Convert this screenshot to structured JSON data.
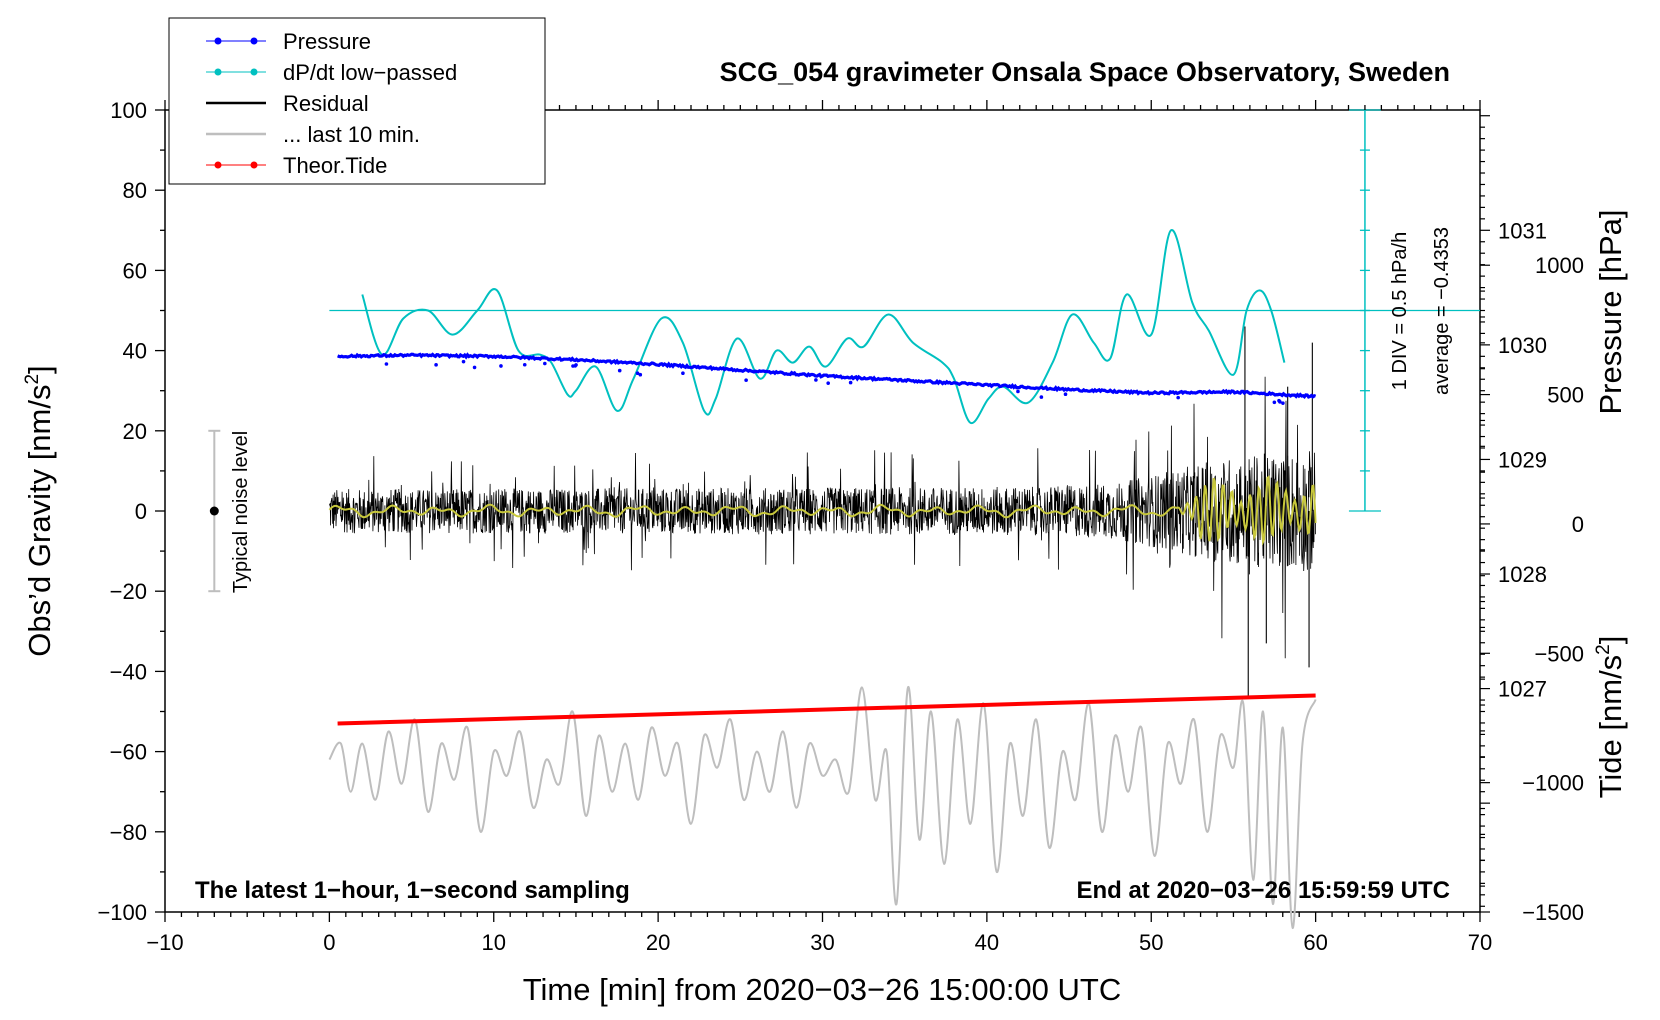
{
  "chart_data": {
    "type": "line",
    "title": "SCG_054 gravimeter Onsala Space Observatory, Sweden",
    "xlabel": "Time [min] from 2020−03−26 15:00:00 UTC",
    "ylabel_main": "Obs’d Gravity [nm/s",
    "ylabel_sup": "2",
    "ylabel_close": "]",
    "xlim": [
      -10,
      70
    ],
    "ylim": [
      -100,
      100
    ],
    "x_ticks": [
      {
        "v": -10,
        "label": "−10"
      },
      {
        "v": 0,
        "label": "0"
      },
      {
        "v": 10,
        "label": "10"
      },
      {
        "v": 20,
        "label": "20"
      },
      {
        "v": 30,
        "label": "30"
      },
      {
        "v": 40,
        "label": "40"
      },
      {
        "v": 50,
        "label": "50"
      },
      {
        "v": 60,
        "label": "60"
      },
      {
        "v": 70,
        "label": "70"
      }
    ],
    "y_ticks": [
      {
        "v": 100,
        "label": "100"
      },
      {
        "v": 80,
        "label": "80"
      },
      {
        "v": 60,
        "label": "60"
      },
      {
        "v": 40,
        "label": "40"
      },
      {
        "v": 20,
        "label": "20"
      },
      {
        "v": 0,
        "label": "0"
      },
      {
        "v": -20,
        "label": "−20"
      },
      {
        "v": -40,
        "label": "−40"
      },
      {
        "v": -60,
        "label": "−60"
      },
      {
        "v": -80,
        "label": "−80"
      },
      {
        "v": -100,
        "label": "−100"
      }
    ],
    "pressure_axis": {
      "label": "Pressure [hPa]",
      "range": [
        1025.05,
        1032.05
      ],
      "ticks": [
        {
          "v": 1031,
          "label": "1031"
        },
        {
          "v": 1030,
          "label": "1030"
        },
        {
          "v": 1029,
          "label": "1029"
        },
        {
          "v": 1028,
          "label": "1028"
        },
        {
          "v": 1027,
          "label": "1027"
        }
      ]
    },
    "tide_axis": {
      "label_main": "Tide [nm/s",
      "label_sup": "2",
      "label_close": "]",
      "range": [
        -1500,
        1600
      ],
      "ticks": [
        {
          "v": 1000,
          "label": "1000"
        },
        {
          "v": 500,
          "label": "500"
        },
        {
          "v": 0,
          "label": "0"
        },
        {
          "v": -500,
          "label": "−500"
        },
        {
          "v": -1000,
          "label": "−1000"
        },
        {
          "v": -1500,
          "label": "−1500"
        }
      ]
    },
    "legend": [
      {
        "label": "Pressure",
        "color": "#0000ff",
        "marker": true
      },
      {
        "label": "dP/dt low−passed",
        "color": "#00c0c0",
        "marker": true
      },
      {
        "label": "Residual",
        "color": "#000000",
        "marker": false
      },
      {
        "label": "... last 10 min.",
        "color": "#bebebe",
        "marker": false
      },
      {
        "label": "Theor.Tide",
        "color": "#ff0000",
        "marker": true
      }
    ],
    "series": [
      {
        "name": "Pressure",
        "axis": "pressure",
        "color": "#0000ff",
        "x": [
          0.5,
          5,
          10,
          15,
          20,
          25,
          30,
          35,
          40,
          45,
          50,
          55,
          60
        ],
        "values": [
          1029.9,
          1029.91,
          1029.9,
          1029.87,
          1029.83,
          1029.78,
          1029.73,
          1029.69,
          1029.65,
          1029.61,
          1029.58,
          1029.59,
          1029.55
        ]
      },
      {
        "name": "dP/dt low-passed",
        "axis": "left",
        "color": "#00c0c0",
        "x": [
          2,
          3.2,
          4.5,
          6,
          7.5,
          9,
          10.2,
          11.5,
          12.8,
          13.5,
          14.5,
          15,
          16.2,
          17.5,
          18.5,
          20.2,
          21.5,
          22.8,
          23.5,
          24.8,
          26.2,
          27.2,
          28.2,
          29.2,
          30.2,
          31.5,
          32.5,
          34,
          35.5,
          37.3,
          38,
          39,
          40.1,
          41,
          42.5,
          44,
          45.2,
          46.5,
          47.5,
          48.5,
          50,
          51.2,
          52.5,
          53.5,
          55,
          55.8,
          56.6,
          57.3,
          58.1
        ],
        "values": [
          54,
          39,
          48,
          50,
          44,
          50,
          55,
          40,
          39,
          37,
          29,
          30,
          36,
          25,
          33,
          48,
          42,
          25,
          28,
          43,
          33,
          40,
          37,
          41,
          36,
          43,
          41,
          49,
          42,
          37,
          33,
          22,
          28,
          31,
          27,
          37,
          49,
          42,
          38,
          54,
          44,
          70,
          52,
          45,
          34,
          50,
          55,
          50,
          37
        ]
      },
      {
        "name": "Residual",
        "axis": "left",
        "color": "#000000",
        "x_range": [
          0,
          60
        ],
        "amplitude_profile": [
          {
            "x": 0,
            "v": 10
          },
          {
            "x": 43,
            "v": 11
          },
          {
            "x": 48,
            "v": 13
          },
          {
            "x": 51,
            "v": 18
          },
          {
            "x": 55,
            "v": 25
          },
          {
            "x": 60,
            "v": 28
          }
        ],
        "spikes": [
          {
            "x": 55.7,
            "v": 46
          },
          {
            "x": 55.9,
            "v": -46
          },
          {
            "x": 59.8,
            "v": 42
          },
          {
            "x": 59.6,
            "v": -39
          },
          {
            "x": 58.3,
            "v": 31
          },
          {
            "x": 57.0,
            "v": -33
          }
        ]
      },
      {
        "name": "Residual smoothed",
        "axis": "left",
        "color": "#c8c83c",
        "x_range": [
          0,
          60
        ],
        "oscillation_start": 51.5,
        "oscillation_amplitude": 8
      },
      {
        "name": "... last 10 min.",
        "axis": "left",
        "color": "#bebebe",
        "x": [
          0,
          0.7,
          1.3,
          2.0,
          2.8,
          3.6,
          4.4,
          5.2,
          6.0,
          6.8,
          7.6,
          8.4,
          9.2,
          10.0,
          10.8,
          11.6,
          12.4,
          13.2,
          14.0,
          14.8,
          15.6,
          16.4,
          17.2,
          18.0,
          18.8,
          19.6,
          20.4,
          21.2,
          22.0,
          22.8,
          23.6,
          24.4,
          25.2,
          26.0,
          26.8,
          27.6,
          28.4,
          29.2,
          30.0,
          30.8,
          31.6,
          32.4,
          33.2,
          33.9,
          34.5,
          35.2,
          35.9,
          36.6,
          37.4,
          38.2,
          39.0,
          39.8,
          40.6,
          41.4,
          42.2,
          43.0,
          43.8,
          44.6,
          45.4,
          46.2,
          47.0,
          47.8,
          48.6,
          49.4,
          50.2,
          51.0,
          51.8,
          52.6,
          53.4,
          54.2,
          55.0,
          55.6,
          56.2,
          56.8,
          57.4,
          58.0,
          58.6,
          59.2,
          60.0
        ],
        "values": [
          -62,
          -58,
          -70,
          -58,
          -72,
          -55,
          -68,
          -52,
          -75,
          -58,
          -67,
          -54,
          -80,
          -60,
          -66,
          -55,
          -74,
          -62,
          -68,
          -50,
          -76,
          -56,
          -70,
          -58,
          -72,
          -54,
          -66,
          -58,
          -78,
          -56,
          -64,
          -52,
          -72,
          -60,
          -70,
          -55,
          -74,
          -58,
          -66,
          -62,
          -70,
          -44,
          -72,
          -60,
          -98,
          -44,
          -82,
          -50,
          -88,
          -52,
          -78,
          -48,
          -90,
          -58,
          -76,
          -52,
          -84,
          -60,
          -72,
          -48,
          -80,
          -56,
          -70,
          -54,
          -86,
          -58,
          -68,
          -52,
          -80,
          -56,
          -64,
          -48,
          -92,
          -50,
          -98,
          -54,
          -104,
          -58,
          -47
        ]
      },
      {
        "name": "Theor.Tide",
        "axis": "left",
        "color": "#ff0000",
        "x": [
          0.5,
          60
        ],
        "values": [
          -53,
          -46
        ]
      }
    ],
    "pressure_rate_ref": {
      "baseline": 50,
      "label_div": "1 DIV = 0.5 hPa/h",
      "label_avg": "average = −0.4353",
      "scale_top": 100,
      "scale_bottom": 0,
      "scale_x": 63
    },
    "noise_level": {
      "label": "Typical noise level",
      "x": -7,
      "center": 0,
      "low": -20,
      "high": 20
    },
    "annotations": {
      "left": "The latest 1−hour, 1−second sampling",
      "right": "End at 2020−03−26 15:59:59 UTC"
    }
  }
}
